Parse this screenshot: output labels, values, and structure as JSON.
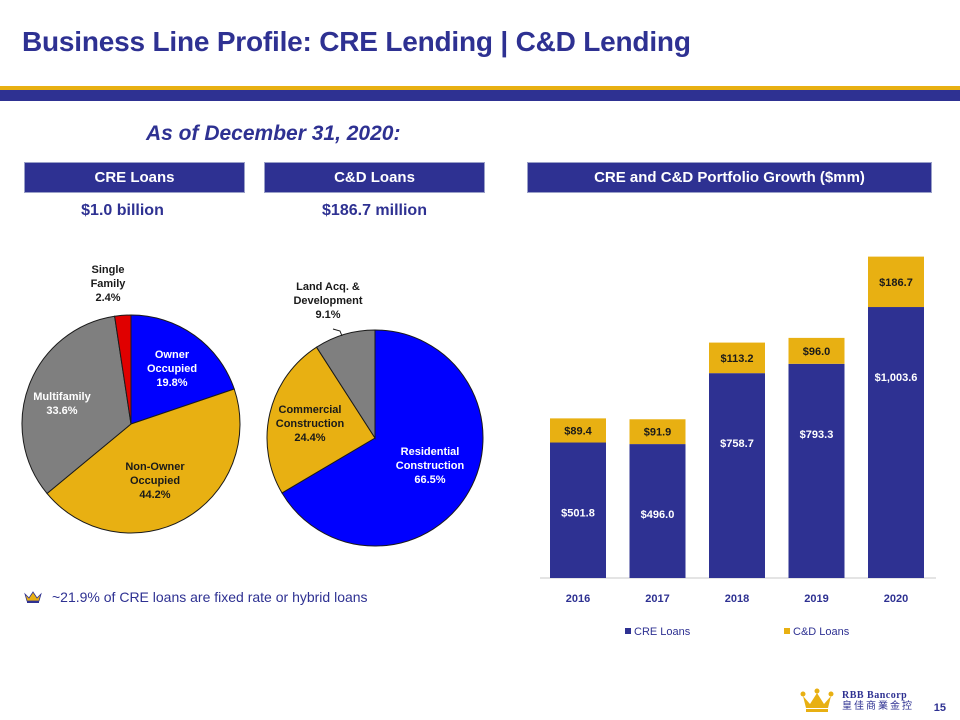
{
  "title": "Business Line Profile:  CRE Lending | C&D Lending",
  "as_of": "As of December 31, 2020:",
  "headers": {
    "cre": "CRE Loans",
    "cd": "C&D Loans",
    "growth": "CRE and C&D Portfolio Growth ($mm)"
  },
  "totals": {
    "cre": "$1.0 billion",
    "cd": "$186.7 million"
  },
  "footnote": "~21.9% of CRE loans are fixed rate or hybrid loans",
  "page_number": "15",
  "logo": {
    "name": "RBB Bancorp",
    "chinese": "皇佳商業金控"
  },
  "colors": {
    "navy": "#2e3192",
    "gold": "#e8b012",
    "blue": "#0000ff",
    "gray": "#7f7f7f",
    "red": "#e00000"
  },
  "chart_data": [
    {
      "type": "pie",
      "title": "CRE Loans",
      "slices": [
        {
          "label": "Owner Occupied",
          "value": 19.8,
          "display": "19.8%",
          "color": "#0000ff"
        },
        {
          "label": "Non-Owner Occupied",
          "value": 44.2,
          "display": "44.2%",
          "color": "#e8b012"
        },
        {
          "label": "Multifamily",
          "value": 33.6,
          "display": "33.6%",
          "color": "#7f7f7f"
        },
        {
          "label": "Single Family",
          "value": 2.4,
          "display": "2.4%",
          "color": "#e00000"
        }
      ]
    },
    {
      "type": "pie",
      "title": "C&D Loans",
      "slices": [
        {
          "label": "Residential Construction",
          "value": 66.5,
          "display": "66.5%",
          "color": "#0000ff"
        },
        {
          "label": "Commercial Construction",
          "value": 24.4,
          "display": "24.4%",
          "color": "#e8b012"
        },
        {
          "label": "Land Acq. & Development",
          "value": 9.1,
          "display": "9.1%",
          "color": "#7f7f7f"
        }
      ]
    },
    {
      "type": "bar",
      "stacked": true,
      "title": "CRE and C&D Portfolio Growth ($mm)",
      "categories": [
        "2016",
        "2017",
        "2018",
        "2019",
        "2020"
      ],
      "series": [
        {
          "name": "CRE Loans",
          "color": "#2e3192",
          "values": [
            501.8,
            496.0,
            758.7,
            793.3,
            1003.6
          ],
          "labels": [
            "$501.8",
            "$496.0",
            "$758.7",
            "$793.3",
            "$1,003.6"
          ]
        },
        {
          "name": "C&D Loans",
          "color": "#e8b012",
          "values": [
            89.4,
            91.9,
            113.2,
            96.0,
            186.7
          ],
          "labels": [
            "$89.4",
            "$91.9",
            "$113.2",
            "$96.0",
            "$186.7"
          ]
        }
      ],
      "ylim": [
        0,
        1400
      ],
      "legend": "bottom"
    }
  ]
}
